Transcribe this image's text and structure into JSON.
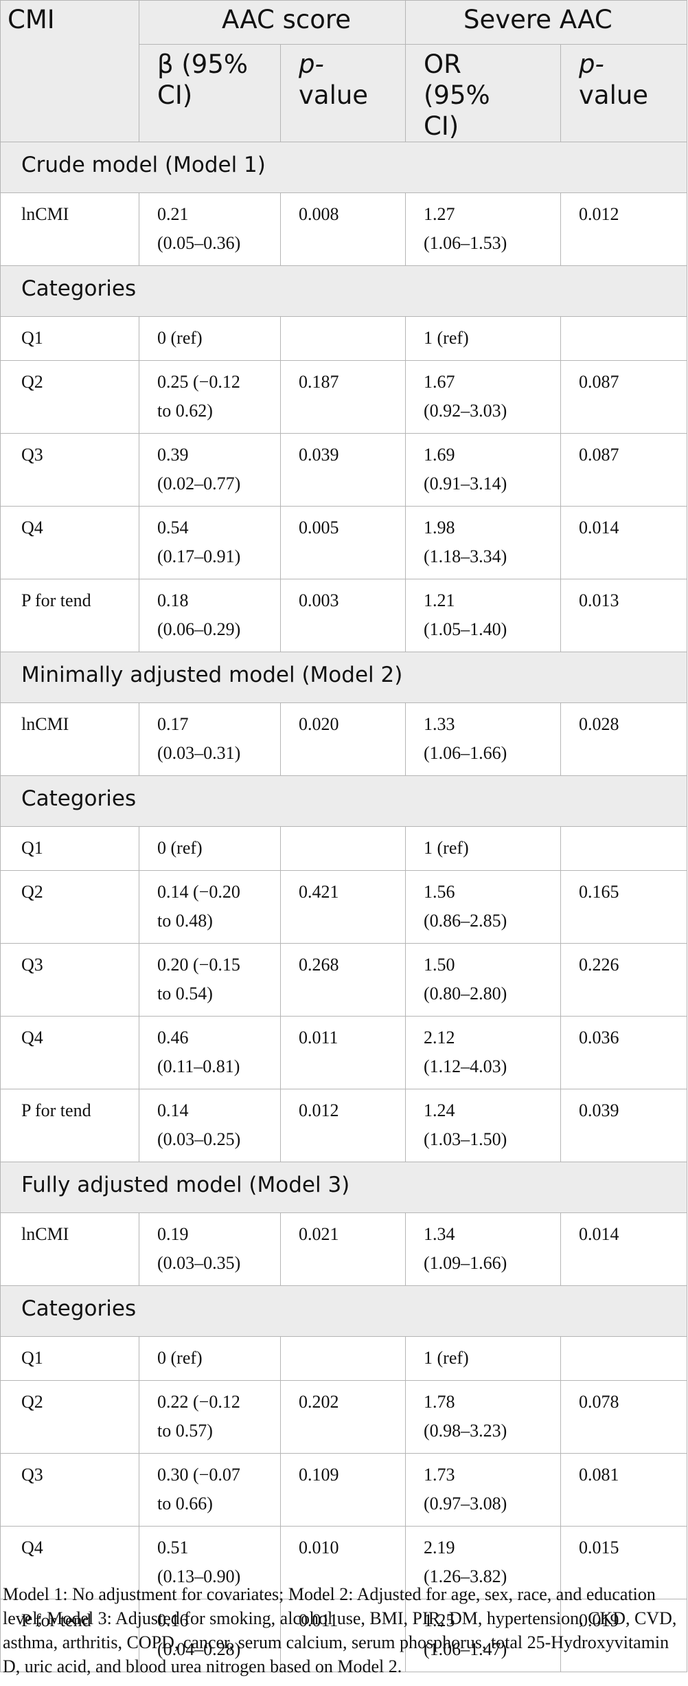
{
  "header": {
    "col_cmi": "CMI",
    "col_aac": "AAC score",
    "col_severe": "Severe AAC",
    "beta_ci": "β (95% CI)",
    "p_value_p": "p-",
    "p_value_rest": "value",
    "or_ci": "OR (95% CI)"
  },
  "sections": [
    {
      "title": "Crude model (Model 1)",
      "categories_label": "Categories",
      "ln_row": {
        "label": "lnCMI",
        "beta_1": "0.21",
        "beta_2": "(0.05–0.36)",
        "p1": "0.008",
        "or_1": "1.27",
        "or_2": "(1.06–1.53)",
        "p2": "0.012"
      },
      "cat_rows": [
        {
          "label": "Q1",
          "beta_1": "0 (ref)",
          "beta_2": "",
          "p1": "",
          "or_1": "1 (ref)",
          "or_2": "",
          "p2": ""
        },
        {
          "label": "Q2",
          "beta_1": "0.25 (−0.12",
          "beta_2": "to 0.62)",
          "p1": "0.187",
          "or_1": "1.67",
          "or_2": "(0.92–3.03)",
          "p2": "0.087"
        },
        {
          "label": "Q3",
          "beta_1": "0.39",
          "beta_2": "(0.02–0.77)",
          "p1": "0.039",
          "or_1": "1.69",
          "or_2": "(0.91–3.14)",
          "p2": "0.087"
        },
        {
          "label": "Q4",
          "beta_1": "0.54",
          "beta_2": "(0.17–0.91)",
          "p1": "0.005",
          "or_1": "1.98",
          "or_2": "(1.18–3.34)",
          "p2": "0.014"
        },
        {
          "label": "P for tend",
          "beta_1": "0.18",
          "beta_2": "(0.06–0.29)",
          "p1": "0.003",
          "or_1": "1.21",
          "or_2": "(1.05–1.40)",
          "p2": "0.013"
        }
      ]
    },
    {
      "title": "Minimally adjusted model (Model 2)",
      "categories_label": "Categories",
      "ln_row": {
        "label": "lnCMI",
        "beta_1": "0.17",
        "beta_2": "(0.03–0.31)",
        "p1": "0.020",
        "or_1": "1.33",
        "or_2": "(1.06–1.66)",
        "p2": "0.028"
      },
      "cat_rows": [
        {
          "label": "Q1",
          "beta_1": "0 (ref)",
          "beta_2": "",
          "p1": "",
          "or_1": "1 (ref)",
          "or_2": "",
          "p2": ""
        },
        {
          "label": "Q2",
          "beta_1": "0.14 (−0.20",
          "beta_2": "to 0.48)",
          "p1": "0.421",
          "or_1": "1.56",
          "or_2": "(0.86–2.85)",
          "p2": "0.165"
        },
        {
          "label": "Q3",
          "beta_1": "0.20 (−0.15",
          "beta_2": "to 0.54)",
          "p1": "0.268",
          "or_1": "1.50",
          "or_2": "(0.80–2.80)",
          "p2": "0.226"
        },
        {
          "label": "Q4",
          "beta_1": "0.46",
          "beta_2": "(0.11–0.81)",
          "p1": "0.011",
          "or_1": "2.12",
          "or_2": "(1.12–4.03)",
          "p2": "0.036"
        },
        {
          "label": "P for tend",
          "beta_1": "0.14",
          "beta_2": "(0.03–0.25)",
          "p1": "0.012",
          "or_1": "1.24",
          "or_2": "(1.03–1.50)",
          "p2": "0.039"
        }
      ]
    },
    {
      "title": "Fully adjusted model (Model 3)",
      "categories_label": "Categories",
      "ln_row": {
        "label": "lnCMI",
        "beta_1": "0.19",
        "beta_2": "(0.03–0.35)",
        "p1": "0.021",
        "or_1": "1.34",
        "or_2": "(1.09–1.66)",
        "p2": "0.014"
      },
      "cat_rows": [
        {
          "label": "Q1",
          "beta_1": "0 (ref)",
          "beta_2": "",
          "p1": "",
          "or_1": "1 (ref)",
          "or_2": "",
          "p2": ""
        },
        {
          "label": "Q2",
          "beta_1": "0.22 (−0.12",
          "beta_2": "to 0.57)",
          "p1": "0.202",
          "or_1": "1.78",
          "or_2": "(0.98–3.23)",
          "p2": "0.078"
        },
        {
          "label": "Q3",
          "beta_1": "0.30 (−0.07",
          "beta_2": "to 0.66)",
          "p1": "0.109",
          "or_1": "1.73",
          "or_2": "(0.97–3.08)",
          "p2": "0.081"
        },
        {
          "label": "Q4",
          "beta_1": "0.51",
          "beta_2": "(0.13–0.90)",
          "p1": "0.010",
          "or_1": "2.19",
          "or_2": "(1.26–3.82)",
          "p2": "0.015"
        },
        {
          "label": "P for tend",
          "beta_1": "0.16",
          "beta_2": "(0.04–0.28)",
          "p1": "0.011",
          "or_1": "1.25",
          "or_2": "(1.06–1.47)",
          "p2": "0.019"
        }
      ]
    }
  ],
  "footnote": "Model 1: No adjustment for covariates; Model 2: Adjusted for age, sex, race, and education level; Model 3: Adjusted for smoking, alcohol use, BMI, PIR, DM, hypertension, CKD, CVD, asthma, arthritis, COPD, cancer, serum calcium, serum phosphorus, total 25-Hydroxyvitamin D, uric acid, and blood urea nitrogen based on Model 2."
}
